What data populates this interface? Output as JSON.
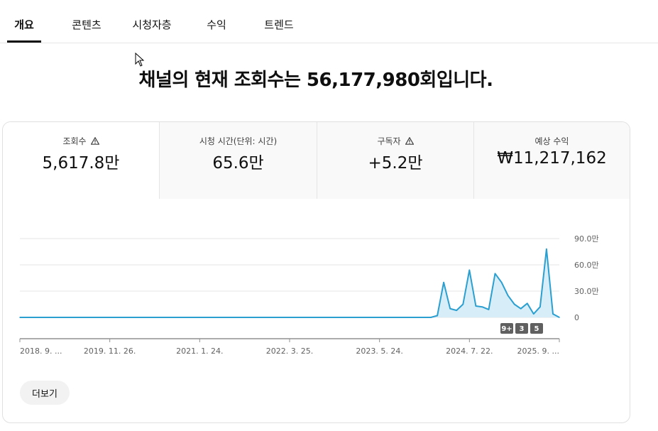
{
  "tabs": [
    {
      "label": "개요"
    },
    {
      "label": "콘텐츠"
    },
    {
      "label": "시청자층"
    },
    {
      "label": "수익"
    },
    {
      "label": "트렌드"
    }
  ],
  "headline": "채널의 현재 조회수는 56,177,980회입니다.",
  "metrics": [
    {
      "label": "조회수",
      "value": "5,617.8만",
      "warning": true
    },
    {
      "label": "시청 시간(단위: 시간)",
      "value": "65.6만",
      "warning": false
    },
    {
      "label": "구독자",
      "value": "+5.2만",
      "warning": true
    },
    {
      "label": "예상 수익",
      "value": "₩11,217,162",
      "warning": false
    }
  ],
  "more_button_label": "더보기",
  "colors": {
    "line": "#2a9fd0",
    "fill": "#d7eef8",
    "accent": "#0f0f0f"
  },
  "chart_data": {
    "type": "area",
    "x_tick_labels": [
      "2018. 9. ...",
      "2019. 11. 26.",
      "2021. 1. 24.",
      "2022. 3. 25.",
      "2023. 5. 24.",
      "2024. 7. 22.",
      "2025. 9. ..."
    ],
    "y_tick_labels": [
      "90.0만",
      "60.0만",
      "30.0만",
      "0"
    ],
    "ylim": [
      0,
      900000
    ],
    "grid": true,
    "markers": [
      "9+",
      "3",
      "5"
    ],
    "x": [
      "2018-09",
      "2024-01",
      "2024-02",
      "2024-03",
      "2024-04",
      "2024-05",
      "2024-06",
      "2024-07",
      "2024-08",
      "2024-09",
      "2024-10",
      "2024-11",
      "2024-12",
      "2025-01",
      "2025-02",
      "2025-03",
      "2025-04",
      "2025-05",
      "2025-06",
      "2025-07",
      "2025-08",
      "2025-09"
    ],
    "values": [
      0,
      0,
      20000,
      400000,
      100000,
      80000,
      150000,
      540000,
      130000,
      120000,
      90000,
      500000,
      400000,
      250000,
      150000,
      100000,
      160000,
      40000,
      120000,
      780000,
      40000,
      0
    ]
  }
}
